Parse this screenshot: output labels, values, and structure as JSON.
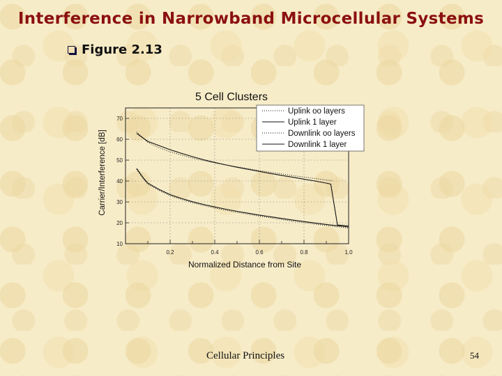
{
  "slide": {
    "title": "Interference in Narrowband Microcellular Systems",
    "bullet": "Figure 2.13",
    "footer": "Cellular Principles",
    "page_number": "54"
  },
  "chart_data": {
    "type": "line",
    "title": "5 Cell Clusters",
    "xlabel": "Normalized Distance from Site",
    "ylabel": "Carrier/Interference [dB]",
    "xlim": [
      0.0,
      1.0
    ],
    "ylim": [
      10,
      75
    ],
    "xticks": [
      "0.2",
      "0.4",
      "0.6",
      "0.8",
      "1.0"
    ],
    "yticks": [
      "10",
      "20",
      "30",
      "40",
      "50",
      "60",
      "70"
    ],
    "grid": true,
    "legend_position": "top-right",
    "series": [
      {
        "name": "Uplink oo layers",
        "style": "dotted",
        "x": [
          0.05,
          0.1,
          0.15,
          0.2,
          0.25,
          0.3,
          0.35,
          0.4,
          0.45,
          0.5,
          0.55,
          0.6,
          0.65,
          0.7,
          0.75,
          0.8,
          0.85,
          0.9,
          0.93
        ],
        "y": [
          63.5,
          58.5,
          56.0,
          54.0,
          52.5,
          51.0,
          49.8,
          48.7,
          47.7,
          46.8,
          45.9,
          45.0,
          44.2,
          43.4,
          42.6,
          41.9,
          41.2,
          40.5,
          40.2
        ]
      },
      {
        "name": "Uplink 1 layer",
        "style": "solid",
        "x": [
          0.05,
          0.08,
          0.1,
          0.15,
          0.2,
          0.25,
          0.3,
          0.35,
          0.4,
          0.45,
          0.5,
          0.55,
          0.6,
          0.65,
          0.7,
          0.75,
          0.8,
          0.85,
          0.9,
          0.92,
          0.95,
          1.0
        ],
        "y": [
          62.8,
          60.5,
          59.0,
          57.0,
          55.0,
          53.3,
          51.7,
          50.2,
          48.9,
          47.7,
          46.6,
          45.6,
          44.6,
          43.6,
          42.7,
          41.8,
          40.9,
          40.0,
          39.0,
          38.5,
          19.0,
          18.5
        ]
      },
      {
        "name": "Downlink oo layers",
        "style": "dotted",
        "x": [
          0.05,
          0.08,
          0.1,
          0.15,
          0.2,
          0.25,
          0.3,
          0.35,
          0.4,
          0.45,
          0.5,
          0.55,
          0.6,
          0.65,
          0.7,
          0.75,
          0.8,
          0.85,
          0.9,
          0.95,
          1.0
        ],
        "y": [
          45.5,
          41.0,
          38.5,
          35.5,
          33.0,
          31.2,
          29.6,
          28.3,
          27.1,
          26.0,
          25.0,
          24.1,
          23.2,
          22.4,
          21.6,
          20.8,
          20.1,
          19.4,
          18.7,
          18.1,
          17.5
        ]
      },
      {
        "name": "Downlink 1 layer",
        "style": "solid",
        "x": [
          0.05,
          0.08,
          0.1,
          0.15,
          0.2,
          0.25,
          0.3,
          0.35,
          0.4,
          0.45,
          0.5,
          0.55,
          0.6,
          0.65,
          0.7,
          0.75,
          0.8,
          0.85,
          0.9,
          0.95,
          1.0
        ],
        "y": [
          46.0,
          41.5,
          39.0,
          36.0,
          33.5,
          31.7,
          30.1,
          28.8,
          27.6,
          26.5,
          25.5,
          24.6,
          23.7,
          22.9,
          22.1,
          21.3,
          20.6,
          19.9,
          19.2,
          18.6,
          18.0
        ]
      }
    ]
  }
}
